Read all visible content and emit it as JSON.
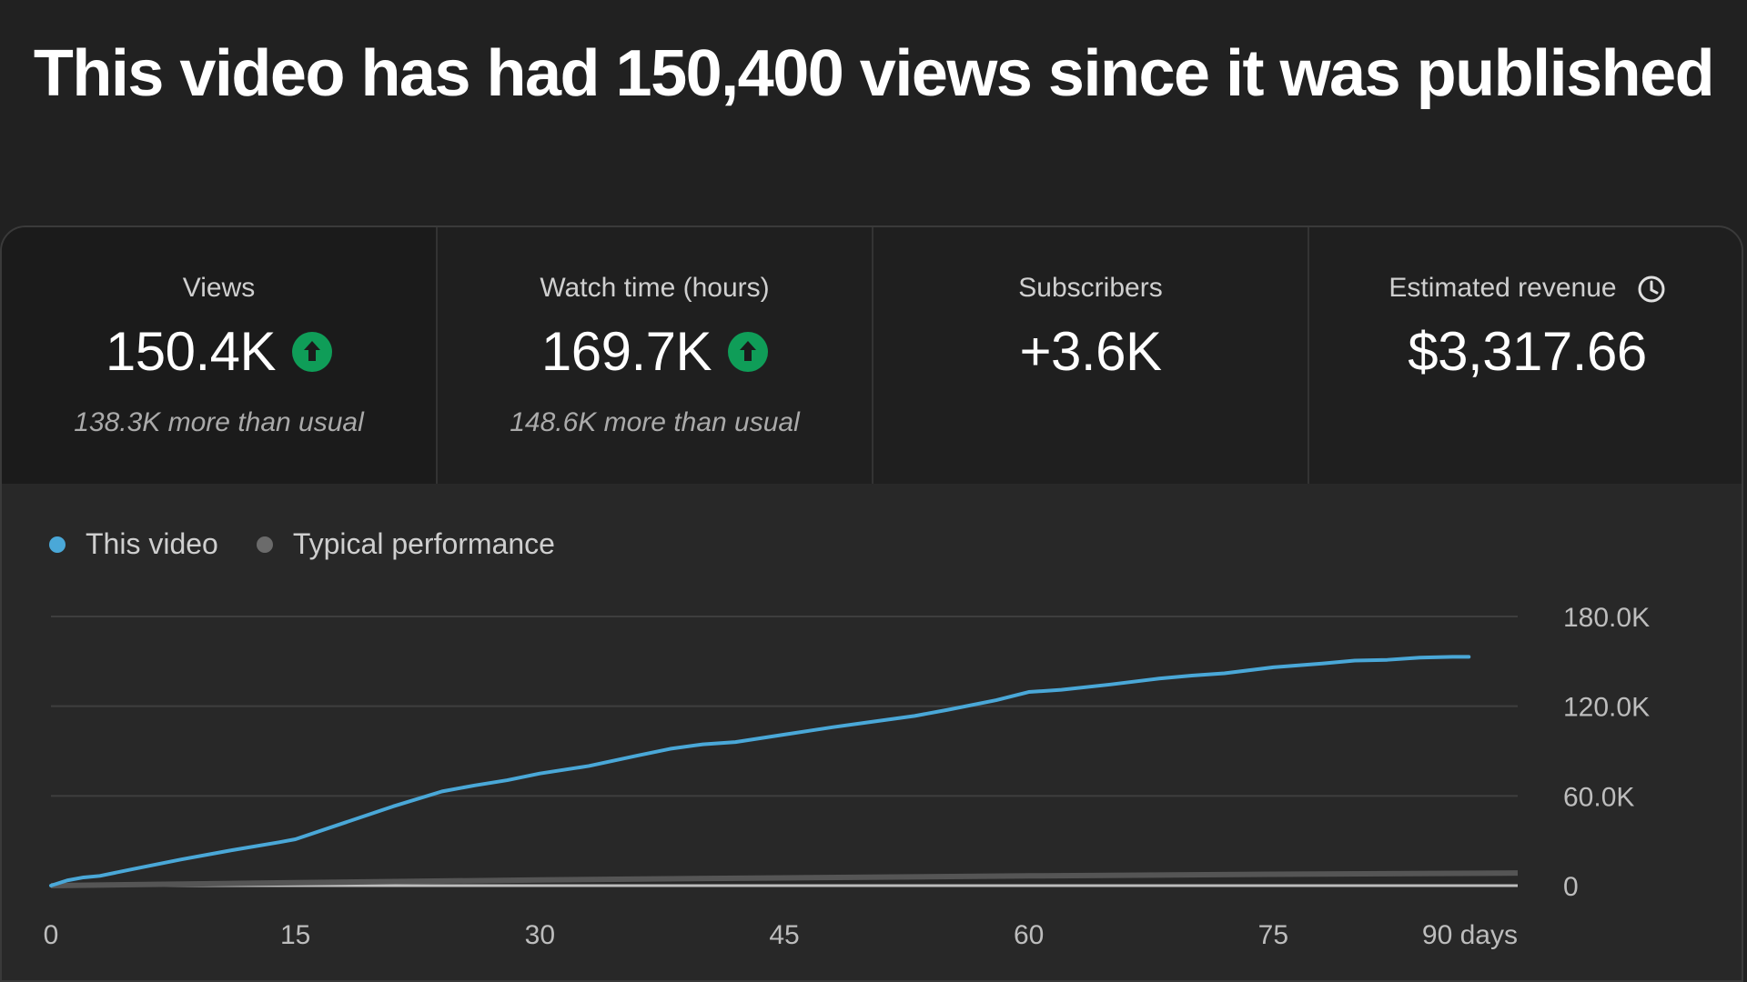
{
  "headline": "This video has had 150,400 views since it was published",
  "cards": [
    {
      "label": "Views",
      "value": "150.4K",
      "sub": "138.3K more than usual",
      "trend": "up-arrow-icon"
    },
    {
      "label": "Watch time (hours)",
      "value": "169.7K",
      "sub": "148.6K more than usual",
      "trend": "up-arrow-icon"
    },
    {
      "label": "Subscribers",
      "value": "+3.6K"
    },
    {
      "label": "Estimated revenue",
      "value": "$3,317.66",
      "icon": "clock-icon"
    }
  ],
  "colors": {
    "this_video": "#4aa8d8",
    "typical": "#6b6b6b",
    "up_badge": "#0f9d58"
  },
  "chart_data": {
    "type": "line",
    "x_tick_labels": [
      "0",
      "15",
      "30",
      "45",
      "60",
      "75",
      "90 days"
    ],
    "y_tick_labels": [
      "0",
      "60.0K",
      "120.0K",
      "180.0K"
    ],
    "xlim": [
      0,
      90
    ],
    "ylim": [
      0,
      180000
    ],
    "grid": true,
    "legend_position": "top-left",
    "series": [
      {
        "name": "This video",
        "x": [
          0,
          1,
          2,
          3,
          5,
          8,
          11,
          14,
          15,
          18,
          21,
          24,
          26,
          28,
          30,
          33,
          36,
          38,
          40,
          42,
          45,
          48,
          50,
          53,
          55,
          58,
          60,
          62,
          65,
          68,
          70,
          72,
          75,
          78,
          80,
          82,
          84,
          86,
          87
        ],
        "y": [
          0,
          3500,
          5500,
          6500,
          11000,
          17500,
          23500,
          29000,
          31000,
          42000,
          53000,
          63000,
          67000,
          70500,
          75000,
          80000,
          87000,
          91500,
          94500,
          96000,
          101000,
          106000,
          109000,
          113500,
          117500,
          124000,
          129500,
          131000,
          134500,
          138500,
          140500,
          142000,
          146000,
          148500,
          150500,
          151000,
          152500,
          153000,
          153000
        ]
      },
      {
        "name": "Typical performance",
        "x": [
          0,
          15,
          30,
          45,
          60,
          75,
          90
        ],
        "y": [
          0,
          2000,
          3800,
          5200,
          6500,
          7600,
          8400
        ]
      }
    ]
  }
}
